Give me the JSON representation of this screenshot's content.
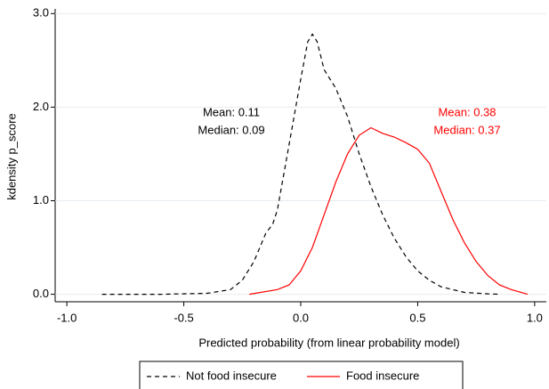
{
  "chart_data": {
    "type": "line",
    "xlabel": "Predicted probability (from linear probability model)",
    "ylabel": "kdensity p_score",
    "xlim": [
      -1.05,
      1.05
    ],
    "ylim": [
      -0.08,
      3.05
    ],
    "xticks": [
      {
        "value": -1,
        "label": "-1.0"
      },
      {
        "value": -0.5,
        "label": "-0.5"
      },
      {
        "value": 0,
        "label": "0.0"
      },
      {
        "value": 0.5,
        "label": "0.5"
      },
      {
        "value": 1,
        "label": "1.0"
      }
    ],
    "yticks": [
      {
        "value": 0,
        "label": "0.0"
      },
      {
        "value": 1,
        "label": "1.0"
      },
      {
        "value": 2,
        "label": "2.0"
      },
      {
        "value": 3,
        "label": "3.0"
      }
    ],
    "grid": true,
    "series": [
      {
        "name": "Not food insecure",
        "color": "#000000",
        "dashed": true,
        "x": [
          -0.85,
          -0.6,
          -0.4,
          -0.3,
          -0.25,
          -0.2,
          -0.15,
          -0.12,
          -0.1,
          -0.05,
          0,
          0.03,
          0.05,
          0.07,
          0.1,
          0.15,
          0.2,
          0.25,
          0.3,
          0.35,
          0.4,
          0.45,
          0.5,
          0.55,
          0.6,
          0.7,
          0.8,
          0.85
        ],
        "values": [
          0,
          0,
          0.01,
          0.05,
          0.15,
          0.35,
          0.65,
          0.75,
          0.9,
          1.6,
          2.3,
          2.7,
          2.78,
          2.7,
          2.4,
          2.2,
          1.9,
          1.5,
          1.15,
          0.85,
          0.6,
          0.4,
          0.25,
          0.15,
          0.08,
          0.02,
          0.005,
          0
        ]
      },
      {
        "name": "Food insecure",
        "color": "#ff0000",
        "dashed": false,
        "x": [
          -0.22,
          -0.1,
          -0.05,
          0,
          0.05,
          0.1,
          0.15,
          0.2,
          0.25,
          0.3,
          0.35,
          0.4,
          0.45,
          0.5,
          0.55,
          0.6,
          0.65,
          0.7,
          0.75,
          0.8,
          0.85,
          0.9,
          0.97
        ],
        "values": [
          0,
          0.05,
          0.1,
          0.25,
          0.5,
          0.85,
          1.2,
          1.5,
          1.7,
          1.78,
          1.72,
          1.68,
          1.62,
          1.55,
          1.4,
          1.1,
          0.8,
          0.55,
          0.35,
          0.2,
          0.1,
          0.05,
          0
        ]
      }
    ],
    "annotations": [
      {
        "text": "Mean: 0.11",
        "color": "#000000"
      },
      {
        "text": "Median: 0.09",
        "color": "#000000"
      },
      {
        "text": "Mean: 0.38",
        "color": "#ff0000"
      },
      {
        "text": "Median: 0.37",
        "color": "#ff0000"
      }
    ]
  }
}
